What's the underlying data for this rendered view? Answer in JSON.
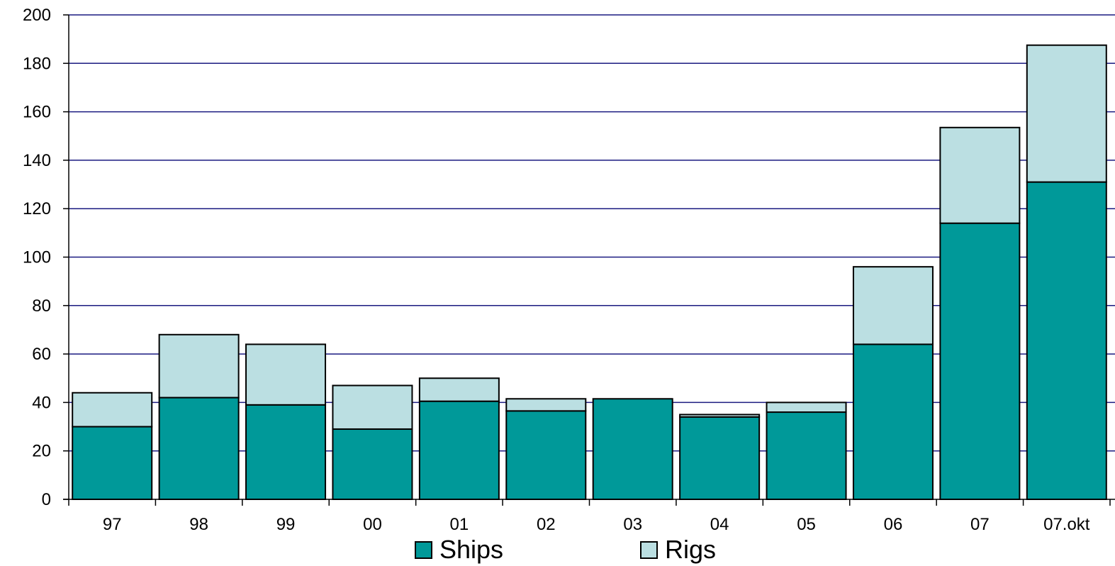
{
  "chart_data": {
    "type": "bar",
    "stacked": true,
    "categories": [
      "97",
      "98",
      "99",
      "00",
      "01",
      "02",
      "03",
      "04",
      "05",
      "06",
      "07",
      "07.okt"
    ],
    "series": [
      {
        "name": "Ships",
        "values": [
          30,
          42,
          39,
          29,
          40.5,
          36.5,
          41.5,
          34,
          36,
          64,
          114,
          131
        ],
        "color": "#009999"
      },
      {
        "name": "Rigs",
        "values": [
          14,
          26,
          25,
          18,
          9.5,
          5,
          0,
          1,
          4,
          32,
          39.5,
          56.5
        ],
        "color": "#bbdfe2"
      }
    ],
    "y_ticks": [
      "0",
      "20",
      "40",
      "60",
      "80",
      "100",
      "120",
      "140",
      "160",
      "180",
      "200"
    ],
    "ylim": [
      0,
      200
    ],
    "title": "",
    "xlabel": "",
    "ylabel": "",
    "grid": true,
    "gridline_color": "#1a1a80",
    "legend_position": "bottom"
  }
}
